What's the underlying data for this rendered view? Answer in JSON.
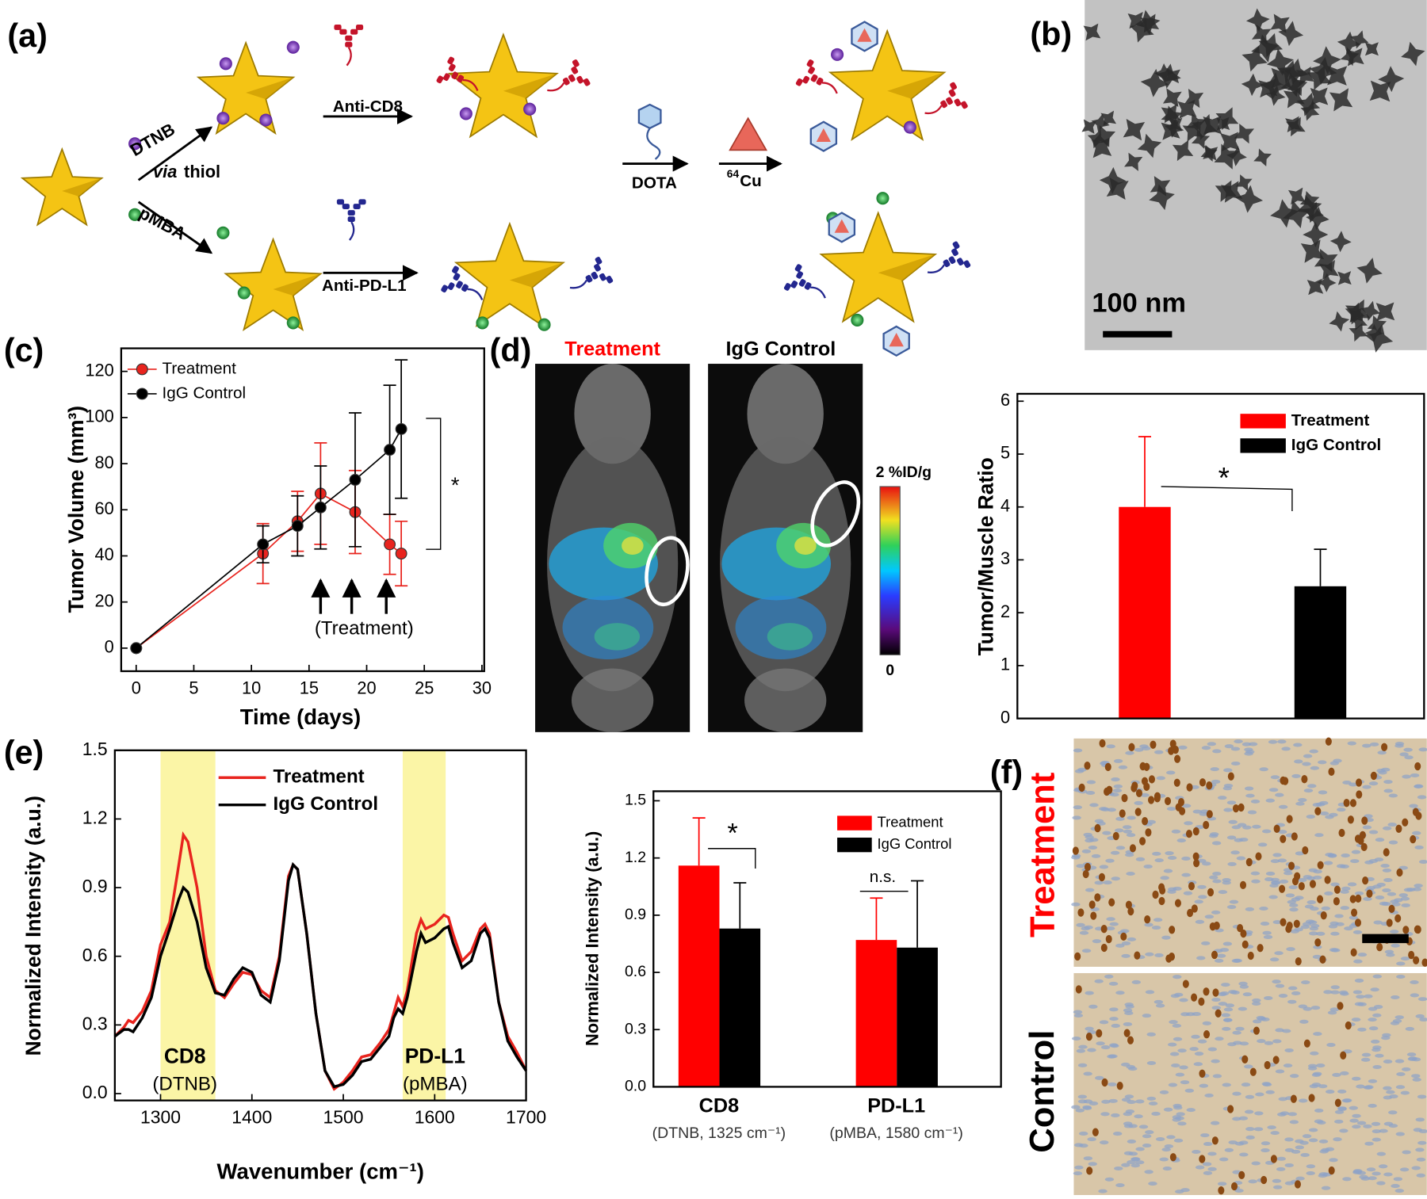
{
  "panels": {
    "a": "(a)",
    "b": "(b)",
    "c": "(c)",
    "d": "(d)",
    "e": "(e)",
    "f": "(f)"
  },
  "scheme": {
    "dtnb": "DTNB",
    "via": "via",
    "thiol": "thiol",
    "pmba": "pMBA",
    "anti_cd8": "Anti-CD8",
    "anti_pdl1": "Anti-PD-L1",
    "dota": "DOTA",
    "cu_mass": "64",
    "cu": "Cu"
  },
  "tem": {
    "scale_bar": "100 nm"
  },
  "pet": {
    "left": "Treatment",
    "right": "IgG Control",
    "colorbar_max": "2 %ID/g",
    "colorbar_min": "0"
  },
  "histology": {
    "top": "Treatment",
    "bottom": "Control"
  },
  "chart_data": [
    {
      "type": "line",
      "x_label": "Time (days)",
      "y_label": "Tumor Volume (mm³)",
      "x": [
        0,
        11,
        14,
        16,
        19,
        22,
        23
      ],
      "series": [
        {
          "name": "Treatment",
          "color": "#e8241e",
          "values": [
            0,
            41,
            55,
            67,
            59,
            45,
            41
          ],
          "errors": [
            0,
            13,
            13,
            22,
            18,
            13,
            14
          ]
        },
        {
          "name": "IgG Control",
          "color": "#000000",
          "values": [
            0,
            45,
            53,
            61,
            73,
            86,
            95
          ],
          "errors": [
            0,
            8,
            13,
            18,
            29,
            28,
            30
          ]
        }
      ],
      "markers": true,
      "xlim": [
        -1.3,
        30.2
      ],
      "xticks": [
        0,
        5,
        10,
        15,
        20,
        25,
        30
      ],
      "ylim": [
        -10,
        130
      ],
      "yticks": [
        0,
        20,
        40,
        60,
        80,
        100,
        120
      ],
      "annotations": [
        "*",
        "(Treatment)"
      ],
      "arrows_x": [
        16,
        18.7,
        21.7
      ]
    },
    {
      "type": "bar",
      "y_label": "Tumor/Muscle Ratio",
      "categories": [
        null
      ],
      "series": [
        {
          "name": "Treatment",
          "color": "#ff0000",
          "values": [
            4.0
          ],
          "errors": [
            1.33
          ]
        },
        {
          "name": "IgG Control",
          "color": "#000000",
          "values": [
            2.5
          ],
          "errors": [
            0.7
          ]
        }
      ],
      "ylim": [
        0,
        6.14
      ],
      "yticks": [
        0,
        1,
        2,
        3,
        4,
        5,
        6
      ],
      "annotations": [
        "*"
      ]
    },
    {
      "type": "line",
      "x_label": "Wavenumber (cm⁻¹)",
      "y_label": "Normalized Intensity (a.u.)",
      "x": [
        1250,
        1260,
        1265,
        1270,
        1280,
        1290,
        1300,
        1310,
        1320,
        1325,
        1330,
        1340,
        1350,
        1360,
        1370,
        1380,
        1390,
        1400,
        1410,
        1420,
        1430,
        1440,
        1445,
        1450,
        1460,
        1470,
        1480,
        1490,
        1500,
        1510,
        1520,
        1530,
        1540,
        1550,
        1555,
        1560,
        1565,
        1570,
        1580,
        1585,
        1590,
        1600,
        1610,
        1615,
        1620,
        1630,
        1640,
        1650,
        1655,
        1660,
        1670,
        1680,
        1690,
        1700
      ],
      "series": [
        {
          "name": "Treatment",
          "color": "#e8241e",
          "values": [
            0.25,
            0.29,
            0.32,
            0.31,
            0.36,
            0.45,
            0.65,
            0.75,
            1.0,
            1.13,
            1.1,
            0.9,
            0.6,
            0.45,
            0.42,
            0.48,
            0.53,
            0.52,
            0.45,
            0.42,
            0.6,
            0.95,
            1.0,
            0.98,
            0.7,
            0.35,
            0.1,
            0.02,
            0.05,
            0.1,
            0.16,
            0.17,
            0.22,
            0.28,
            0.35,
            0.42,
            0.38,
            0.45,
            0.7,
            0.76,
            0.72,
            0.74,
            0.78,
            0.77,
            0.7,
            0.58,
            0.62,
            0.72,
            0.74,
            0.7,
            0.4,
            0.25,
            0.18,
            0.1
          ]
        },
        {
          "name": "IgG Control",
          "color": "#000000",
          "values": [
            0.25,
            0.28,
            0.28,
            0.27,
            0.33,
            0.42,
            0.6,
            0.72,
            0.85,
            0.9,
            0.88,
            0.75,
            0.55,
            0.44,
            0.43,
            0.5,
            0.55,
            0.53,
            0.43,
            0.4,
            0.58,
            0.93,
            1.0,
            0.98,
            0.7,
            0.35,
            0.1,
            0.03,
            0.04,
            0.08,
            0.14,
            0.15,
            0.2,
            0.25,
            0.33,
            0.37,
            0.35,
            0.42,
            0.62,
            0.7,
            0.66,
            0.68,
            0.72,
            0.73,
            0.66,
            0.55,
            0.58,
            0.7,
            0.72,
            0.68,
            0.4,
            0.23,
            0.16,
            0.1
          ]
        }
      ],
      "markers": false,
      "xlim": [
        1250,
        1700
      ],
      "xticks": [
        1300,
        1400,
        1500,
        1600,
        1700
      ],
      "ylim": [
        -0.03,
        1.5
      ],
      "yticks": [
        {
          "value": 0,
          "label": "0.0"
        },
        0.3,
        0.6,
        0.9,
        1.2,
        1.5
      ],
      "highlights": [
        [
          1300,
          1360
        ],
        [
          1565,
          1612
        ]
      ],
      "highlight_color": "#fbf5a6",
      "annotations": [
        "CD8",
        "(DTNB)",
        "PD-L1",
        "(pMBA)"
      ]
    },
    {
      "type": "bar",
      "y_label": "Normalized Intensity (a.u.)",
      "categories": [
        "CD8",
        "PD-L1"
      ],
      "category_notes": [
        "(DTNB, 1325 cm⁻¹)",
        "(pMBA, 1580 cm⁻¹)"
      ],
      "series": [
        {
          "name": "Treatment",
          "color": "#ff0000",
          "values": [
            1.16,
            0.77
          ],
          "errors": [
            0.25,
            0.22
          ]
        },
        {
          "name": "IgG Control",
          "color": "#000000",
          "values": [
            0.83,
            0.73
          ],
          "errors": [
            0.24,
            0.35
          ]
        }
      ],
      "ylim": [
        0,
        1.55
      ],
      "yticks": [
        {
          "value": 0,
          "label": "0.0"
        },
        0.3,
        0.6,
        0.9,
        1.2,
        1.5
      ],
      "annotations": [
        "*",
        "n.s."
      ]
    }
  ]
}
